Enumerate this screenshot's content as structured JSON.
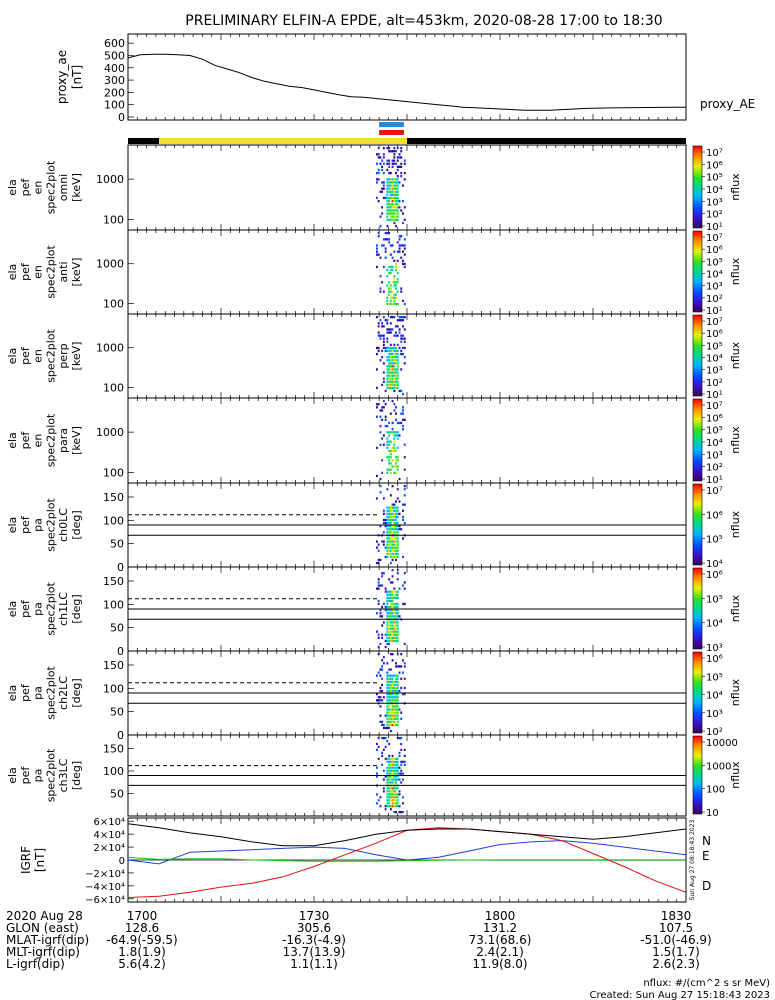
{
  "title": "PRELIMINARY ELFIN-A EPDE, alt=453km, 2020-08-28 17:00 to 18:30",
  "colors": {
    "black": "#000000",
    "yellow": "#f2e21e",
    "blue": "#1e88e5",
    "red": "#e8150e",
    "grf_n": "#1f3fd8",
    "grf_e": "#19c119",
    "grf_d": "#e01010"
  },
  "chart_data": [
    {
      "type": "line",
      "name": "proxy_ae",
      "ylabel_lines": [
        "proxy_ae",
        "[nT]"
      ],
      "legend": "proxy_AE",
      "ylim": [
        0,
        650
      ],
      "yticks": [
        "600",
        "500",
        "400",
        "300",
        "200",
        "100",
        "0"
      ],
      "ytick_values": [
        600,
        500,
        400,
        300,
        200,
        100,
        0
      ],
      "x_minutes": [
        0,
        2,
        4,
        6,
        8,
        10,
        12,
        14,
        16,
        18,
        20,
        22,
        24,
        26,
        28,
        30,
        32,
        34,
        36,
        38,
        40,
        42,
        44,
        46,
        48,
        50,
        52,
        54,
        56,
        58,
        60,
        62,
        64,
        66,
        68,
        70,
        72,
        74,
        76,
        78,
        80,
        82,
        84,
        86,
        88,
        90
      ],
      "values": [
        480,
        505,
        510,
        510,
        505,
        500,
        470,
        420,
        390,
        360,
        320,
        290,
        270,
        250,
        240,
        220,
        200,
        180,
        165,
        160,
        150,
        140,
        130,
        120,
        110,
        100,
        90,
        80,
        75,
        70,
        65,
        60,
        55,
        55,
        55,
        60,
        65,
        70,
        72,
        74,
        75,
        76,
        77,
        78,
        79,
        80
      ]
    },
    {
      "type": "table",
      "name": "status-bar",
      "segments": [
        {
          "color": "black",
          "start": 0,
          "end": 5
        },
        {
          "color": "yellow",
          "start": 5,
          "end": 45
        },
        {
          "color": "black",
          "start": 45,
          "end": 90
        }
      ],
      "markers": [
        {
          "color": "blue",
          "start": 40.5,
          "end": 44.5
        },
        {
          "color": "red",
          "start": 40.5,
          "end": 44.5
        }
      ]
    },
    {
      "type": "heatmap",
      "name": "spec-omni",
      "ylabel_lines": [
        "ela",
        "pef",
        "en",
        "spec2plot",
        "omni",
        "[keV]"
      ],
      "yscale": "log",
      "ylim": [
        55,
        7000
      ],
      "yticks": [
        "1000",
        "100"
      ],
      "ytick_values": [
        1000,
        100
      ],
      "colorbar": {
        "label": "nflux",
        "scale": "log",
        "ticks": [
          "10⁷",
          "10⁶",
          "10⁵",
          "10⁴",
          "10³",
          "10²",
          "10¹"
        ]
      }
    },
    {
      "type": "heatmap",
      "name": "spec-anti",
      "ylabel_lines": [
        "ela",
        "pef",
        "en",
        "spec2plot",
        "anti",
        "[keV]"
      ],
      "yscale": "log",
      "ylim": [
        55,
        7000
      ],
      "yticks": [
        "1000",
        "100"
      ],
      "ytick_values": [
        1000,
        100
      ],
      "colorbar": {
        "label": "nflux",
        "scale": "log",
        "ticks": [
          "10⁷",
          "10⁶",
          "10⁵",
          "10⁴",
          "10³",
          "10²",
          "10¹"
        ]
      }
    },
    {
      "type": "heatmap",
      "name": "spec-perp",
      "ylabel_lines": [
        "ela",
        "pef",
        "en",
        "spec2plot",
        "perp",
        "[keV]"
      ],
      "yscale": "log",
      "ylim": [
        55,
        7000
      ],
      "yticks": [
        "1000",
        "100"
      ],
      "ytick_values": [
        1000,
        100
      ],
      "colorbar": {
        "label": "nflux",
        "scale": "log",
        "ticks": [
          "10⁷",
          "10⁶",
          "10⁵",
          "10⁴",
          "10³",
          "10²",
          "10¹"
        ]
      }
    },
    {
      "type": "heatmap",
      "name": "spec-para",
      "ylabel_lines": [
        "ela",
        "pef",
        "en",
        "spec2plot",
        "para",
        "[keV]"
      ],
      "yscale": "log",
      "ylim": [
        55,
        7000
      ],
      "yticks": [
        "1000",
        "100"
      ],
      "ytick_values": [
        1000,
        100
      ],
      "colorbar": {
        "label": "nflux",
        "scale": "log",
        "ticks": [
          "10⁷",
          "10⁶",
          "10⁵",
          "10⁴",
          "10³",
          "10²",
          "10¹"
        ]
      }
    },
    {
      "type": "heatmap",
      "name": "pa-ch0",
      "ylabel_lines": [
        "ela",
        "pef",
        "pa",
        "spec2plot",
        "ch0LC",
        "[deg]"
      ],
      "ylim": [
        0,
        180
      ],
      "yticks": [
        "150",
        "100",
        "50",
        "0"
      ],
      "ytick_values": [
        150,
        100,
        50,
        0
      ],
      "colorbar": {
        "label": "nflux",
        "scale": "log",
        "ticks": [
          "10⁷",
          "10⁶",
          "10⁵",
          "10⁴"
        ]
      }
    },
    {
      "type": "heatmap",
      "name": "pa-ch1",
      "ylabel_lines": [
        "ela",
        "pef",
        "pa",
        "spec2plot",
        "ch1LC",
        "[deg]"
      ],
      "ylim": [
        0,
        180
      ],
      "yticks": [
        "150",
        "100",
        "50",
        "0"
      ],
      "ytick_values": [
        150,
        100,
        50,
        0
      ],
      "colorbar": {
        "label": "nflux",
        "scale": "log",
        "ticks": [
          "10⁶",
          "10⁵",
          "10⁴",
          "10³"
        ]
      }
    },
    {
      "type": "heatmap",
      "name": "pa-ch2",
      "ylabel_lines": [
        "ela",
        "pef",
        "pa",
        "spec2plot",
        "ch2LC",
        "[deg]"
      ],
      "ylim": [
        0,
        180
      ],
      "yticks": [
        "150",
        "100",
        "50",
        "0"
      ],
      "ytick_values": [
        150,
        100,
        50,
        0
      ],
      "colorbar": {
        "label": "nflux",
        "scale": "log",
        "ticks": [
          "10⁶",
          "10⁵",
          "10⁴",
          "10³",
          "10²"
        ]
      }
    },
    {
      "type": "heatmap",
      "name": "pa-ch3",
      "ylabel_lines": [
        "ela",
        "pef",
        "pa",
        "spec2plot",
        "ch3LC",
        "[deg]"
      ],
      "ylim": [
        0,
        180
      ],
      "yticks": [
        "150",
        "100",
        "50"
      ],
      "ytick_values": [
        150,
        100,
        50
      ],
      "colorbar": {
        "label": "nflux",
        "scale": "log",
        "ticks": [
          "10000",
          "1000",
          "100",
          "10"
        ]
      }
    },
    {
      "type": "line",
      "name": "igrf",
      "ylabel_lines": [
        "IGRF",
        "[nT]"
      ],
      "ylim": [
        -65000,
        65000
      ],
      "yticks": [
        "6×10⁴",
        "4×10⁴",
        "2×10⁴",
        "0",
        "−2×10⁴",
        "−4×10⁴",
        "−6×10⁴"
      ],
      "ytick_values": [
        60000,
        40000,
        20000,
        0,
        -20000,
        -40000,
        -60000
      ],
      "side_note": "Sun Aug 27 08:18:43 2023",
      "x_minutes": [
        0,
        5,
        10,
        15,
        20,
        25,
        30,
        35,
        40,
        45,
        50,
        55,
        60,
        65,
        70,
        75,
        80,
        85,
        90
      ],
      "series": [
        {
          "name": "N",
          "color": "#1f3fd8",
          "values": [
            0,
            -6000,
            12000,
            14000,
            16000,
            18000,
            20000,
            18000,
            8000,
            0,
            4000,
            14000,
            24000,
            28000,
            30000,
            26000,
            20000,
            14000,
            8000
          ]
        },
        {
          "name": "E",
          "color": "#19c119",
          "values": [
            4000,
            1000,
            2000,
            2000,
            0,
            -1000,
            -2000,
            -2000,
            -2000,
            -1000,
            -500,
            0,
            -500,
            -500,
            -500,
            -500,
            -500,
            -500,
            -500
          ]
        },
        {
          "name": "D",
          "color": "#e01010",
          "values": [
            -58000,
            -56000,
            -50000,
            -42000,
            -36000,
            -26000,
            -10000,
            8000,
            26000,
            46000,
            50000,
            48000,
            44000,
            40000,
            30000,
            10000,
            -10000,
            -32000,
            -50000
          ]
        },
        {
          "name": "",
          "color": "#000000",
          "values": [
            56000,
            50000,
            42000,
            36000,
            28000,
            22000,
            22000,
            30000,
            40000,
            46000,
            48000,
            48000,
            44000,
            40000,
            36000,
            32000,
            36000,
            42000,
            48000
          ]
        }
      ]
    }
  ],
  "footer": {
    "rows": [
      {
        "label": "2020 Aug 28",
        "v1700": "1700",
        "v1730": "1730",
        "v1800": "1800",
        "v1830": "1830"
      },
      {
        "label": "GLON (east)",
        "v1700": "128.6",
        "v1730": "305.6",
        "v1800": "131.2",
        "v1830": "107.5"
      },
      {
        "label": "MLAT-igrf(dip)",
        "v1700": "-64.9(-59.5)",
        "v1730": "-16.3(-4.9)",
        "v1800": "73.1(68.6)",
        "v1830": "-51.0(-46.9)"
      },
      {
        "label": "MLT-igrf(dip)",
        "v1700": "1.8(1.9)",
        "v1730": "13.7(13.9)",
        "v1800": "2.4(2.1)",
        "v1830": "1.5(1.7)"
      },
      {
        "label": "L-igrf(dip)",
        "v1700": "5.6(4.2)",
        "v1730": "1.1(1.1)",
        "v1800": "11.9(8.0)",
        "v1830": "2.6(2.3)"
      }
    ],
    "units_note": "nflux: #/(cm^2 s sr MeV)",
    "created": "Created: Sun Aug 27 15:18:43 2023"
  }
}
